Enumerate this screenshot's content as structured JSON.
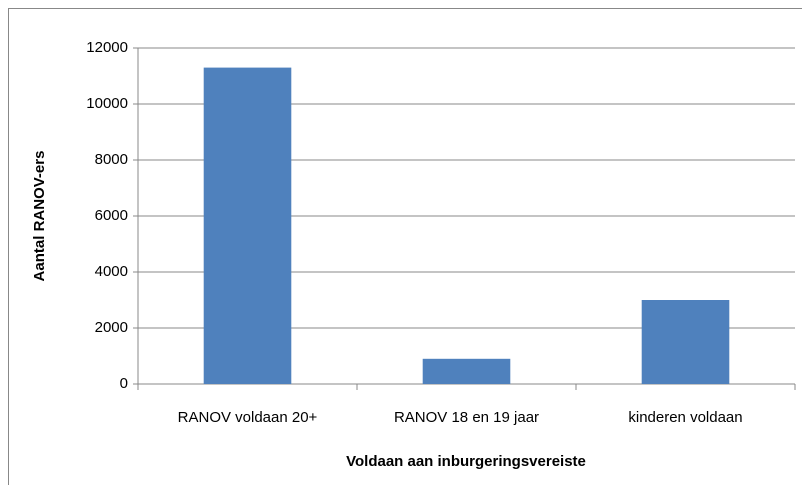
{
  "chart_data": {
    "type": "bar",
    "x_label": "Voldaan aan inburgeringsvereiste",
    "y_label": "Aantal RANOV-ers",
    "categories": [
      "RANOV voldaan  20+",
      "RANOV 18 en 19 jaar",
      "kinderen voldaan"
    ],
    "values": [
      11300,
      900,
      3000
    ],
    "color": "#4f81bd",
    "ylim": [
      0,
      12000
    ],
    "yticks": [
      0,
      2000,
      4000,
      6000,
      8000,
      10000,
      12000
    ],
    "grid": true
  }
}
